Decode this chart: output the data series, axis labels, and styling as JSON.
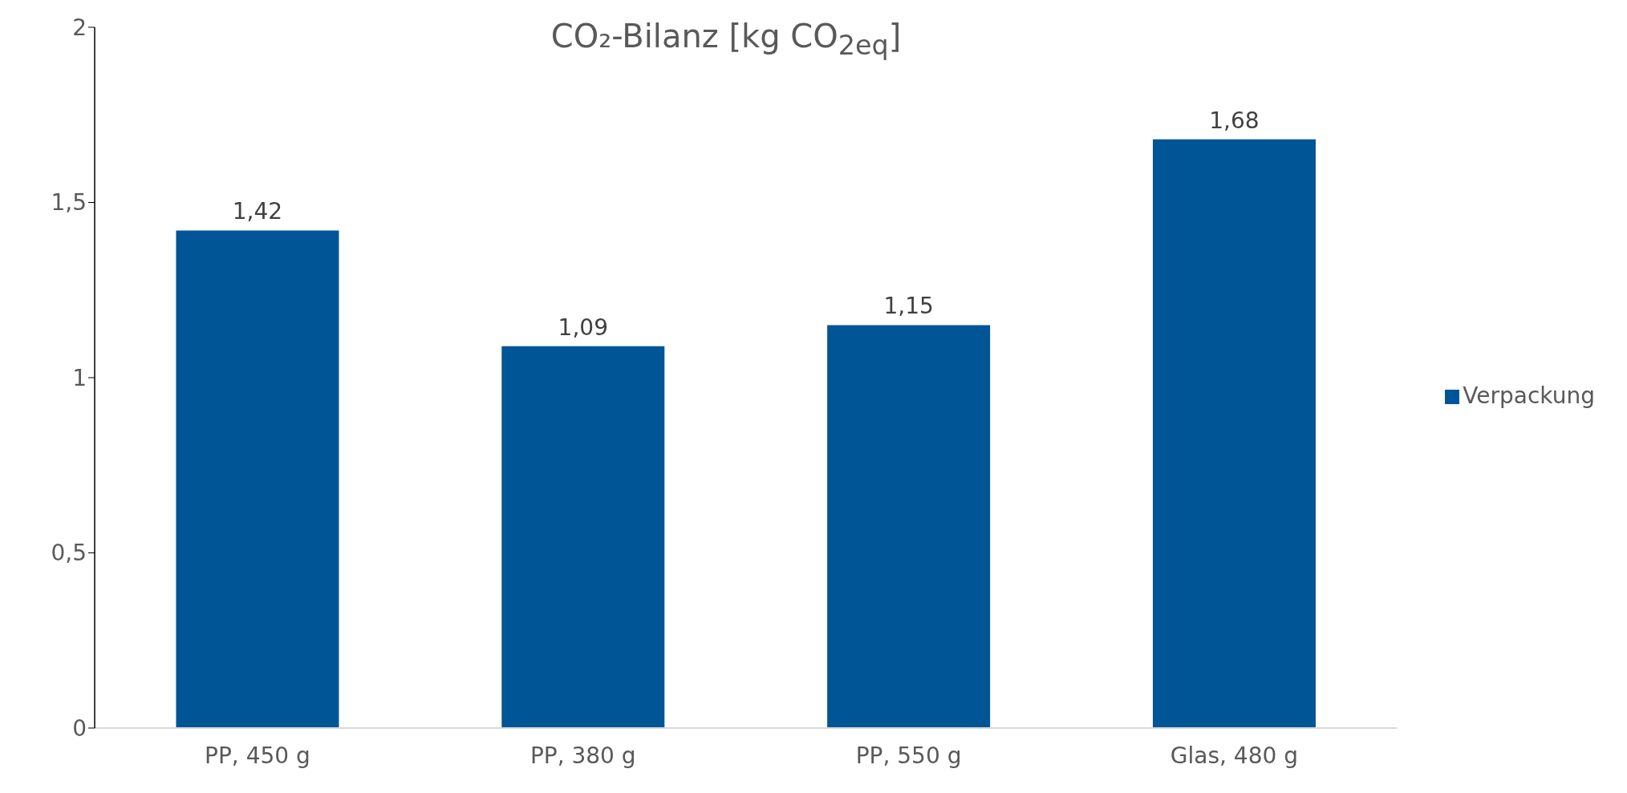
{
  "chart_data": {
    "type": "bar",
    "title": "CO₂-Bilanz [kg CO$_{2eq}$]",
    "categories": [
      "PP, 450 g",
      "PP, 380 g",
      "PP, 550 g",
      "Glas, 480 g"
    ],
    "series": [
      {
        "name": "Verpackung",
        "color": "#005597",
        "values": [
          1.42,
          1.09,
          1.15,
          1.68
        ],
        "value_labels": [
          "1,42",
          "1,09",
          "1,15",
          "1,68"
        ]
      }
    ],
    "ylim": [
      0,
      2
    ],
    "yticks": [
      0,
      {
        "value": 0.5,
        "label": "0,5"
      },
      1,
      {
        "value": 1.5,
        "label": "1,5"
      },
      2
    ],
    "grid": false,
    "legend": "right"
  }
}
